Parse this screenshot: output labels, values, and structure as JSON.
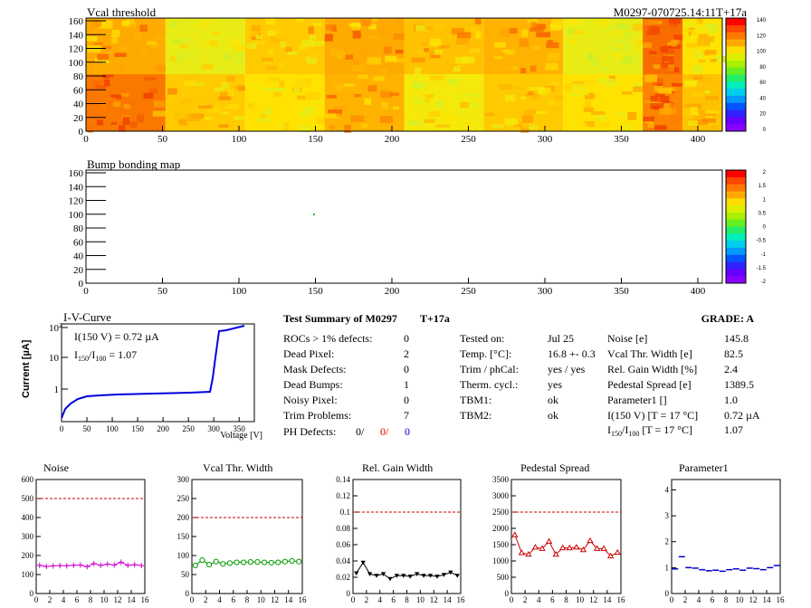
{
  "header": {
    "vcal_title": "Vcal threshold",
    "module_id": "M0297-070725.14:11T+17a",
    "bump_title": "Bump bonding map"
  },
  "maps": {
    "x_ticks": [
      "0",
      "50",
      "100",
      "150",
      "200",
      "250",
      "300",
      "350",
      "400"
    ],
    "y_ticks": [
      "0",
      "20",
      "40",
      "60",
      "80",
      "100",
      "120",
      "140",
      "160"
    ],
    "vcal_scale": [
      "0",
      "20",
      "40",
      "60",
      "80",
      "100",
      "120",
      "140"
    ],
    "bump_scale": [
      "-2",
      "-1.5",
      "-1",
      "-0.5",
      "0",
      "0.5",
      "1",
      "1.5",
      "2"
    ],
    "vcal_roc_levels": {
      "top": [
        0.8,
        0.55,
        0.72,
        0.8,
        0.74,
        0.78,
        0.55,
        0.92,
        0.66
      ],
      "bottom": [
        0.9,
        0.72,
        0.66,
        0.78,
        0.6,
        0.72,
        0.66,
        0.88,
        0.74
      ]
    }
  },
  "iv": {
    "title": "I-V-Curve",
    "ylabel": "Current [µA]",
    "xlabel": "Voltage [V]",
    "ann1": "I(150 V) = 0.72 µA",
    "ann2_pre": "I",
    "ann2_sub1": "150",
    "ann2_mid": "/I",
    "ann2_sub2": "100",
    "ann2_val": " =  1.07",
    "x_ticks": [
      "0",
      "50",
      "100",
      "150",
      "200",
      "250",
      "300",
      "350"
    ],
    "y_ticks": [
      "1",
      "10",
      "10"
    ],
    "y_exp": "2"
  },
  "summary": {
    "title": "Test Summary of M0297",
    "tag": "T+17a",
    "grade": "GRADE:  A",
    "col1": [
      {
        "label": "ROCs > 1% defects:",
        "value": "0"
      },
      {
        "label": "Dead Pixel:",
        "value": "2"
      },
      {
        "label": "Mask Defects:",
        "value": "0"
      },
      {
        "label": "Dead Bumps:",
        "value": "1"
      },
      {
        "label": "Noisy Pixel:",
        "value": "0"
      },
      {
        "label": "Trim Problems:",
        "value": "7"
      }
    ],
    "ph_label": "PH Defects:",
    "ph_v1": "0/",
    "ph_v2": "0/",
    "ph_v3": "0",
    "col2": [
      {
        "label": "Tested on:",
        "value": "Jul 25"
      },
      {
        "label": "Temp. [°C]:",
        "value": "16.8 +- 0.3"
      },
      {
        "label": "Trim / phCal:",
        "value": "yes / yes"
      },
      {
        "label": "Therm. cycl.:",
        "value": "yes"
      },
      {
        "label": "TBM1:",
        "value": "ok"
      },
      {
        "label": "TBM2:",
        "value": "ok"
      }
    ],
    "col3": [
      {
        "label": "Noise [e]",
        "value": "145.8"
      },
      {
        "label": "Vcal Thr. Width [e]",
        "value": "82.5"
      },
      {
        "label": "Rel. Gain Width [%]",
        "value": "2.4"
      },
      {
        "label": "Pedestal Spread [e]",
        "value": "1389.5"
      },
      {
        "label": "Parameter1 []",
        "value": "1.0"
      },
      {
        "label": "I(150 V) [T = 17 °C]",
        "value": "0.72 µA"
      }
    ],
    "ratio_pre": "I",
    "ratio_sub1": "150",
    "ratio_mid": "/I",
    "ratio_sub2": "100",
    "ratio_tail": "  [T = 17 °C]",
    "ratio_value": "1.07"
  },
  "chart_data": [
    {
      "type": "line",
      "title": "Noise",
      "x_ticks": [
        "0",
        "2",
        "4",
        "6",
        "8",
        "10",
        "12",
        "14",
        "16"
      ],
      "ylim": [
        0,
        600
      ],
      "y_ticks": [
        "0",
        "100",
        "200",
        "300",
        "400",
        "500",
        "600"
      ],
      "threshold": 500,
      "color": "#cc00cc",
      "marker": "plus",
      "values": [
        148,
        142,
        145,
        147,
        146,
        149,
        150,
        141,
        158,
        148,
        155,
        150,
        165,
        148,
        152,
        147
      ]
    },
    {
      "type": "line",
      "title": "Vcal Thr. Width",
      "x_ticks": [
        "0",
        "2",
        "4",
        "6",
        "8",
        "10",
        "12",
        "14",
        "16"
      ],
      "ylim": [
        0,
        300
      ],
      "y_ticks": [
        "0",
        "50",
        "100",
        "150",
        "200",
        "250",
        "300"
      ],
      "threshold": 200,
      "color": "#009900",
      "marker": "circle",
      "values": [
        74,
        88,
        76,
        84,
        78,
        80,
        82,
        82,
        83,
        83,
        82,
        81,
        82,
        84,
        86,
        84
      ]
    },
    {
      "type": "line",
      "title": "Rel. Gain Width",
      "x_ticks": [
        "0",
        "2",
        "4",
        "6",
        "8",
        "10",
        "12",
        "14",
        "16"
      ],
      "ylim": [
        0,
        0.14
      ],
      "y_ticks": [
        "0",
        "0.02",
        "0.04",
        "0.06",
        "0.08",
        "0.1",
        "0.12",
        "0.14"
      ],
      "threshold": 0.1,
      "color": "#000000",
      "marker": "triangle-down",
      "values": [
        0.025,
        0.038,
        0.024,
        0.022,
        0.024,
        0.018,
        0.022,
        0.022,
        0.021,
        0.024,
        0.022,
        0.022,
        0.021,
        0.023,
        0.026,
        0.022
      ]
    },
    {
      "type": "line",
      "title": "Pedestal Spread",
      "x_ticks": [
        "0",
        "2",
        "4",
        "6",
        "8",
        "10",
        "12",
        "14",
        "16"
      ],
      "ylim": [
        0,
        3500
      ],
      "y_ticks": [
        "0",
        "500",
        "1000",
        "1500",
        "2000",
        "2500",
        "3000",
        "3500"
      ],
      "threshold": 2500,
      "color": "#cc0000",
      "marker": "triangle-up",
      "values": [
        1800,
        1250,
        1200,
        1420,
        1380,
        1600,
        1200,
        1400,
        1400,
        1420,
        1340,
        1620,
        1380,
        1380,
        1150,
        1260
      ]
    },
    {
      "type": "line",
      "title": "Parameter1",
      "x_ticks": [
        "0",
        "2",
        "4",
        "6",
        "8",
        "10",
        "12",
        "14",
        "16"
      ],
      "ylim": [
        0,
        4.4
      ],
      "y_ticks": [
        "0",
        "1",
        "2",
        "3",
        "4"
      ],
      "threshold": null,
      "color": "#0000cc",
      "marker": "hbar",
      "values": [
        0.95,
        1.42,
        1.0,
        0.98,
        0.92,
        0.88,
        0.9,
        0.86,
        0.92,
        0.95,
        0.9,
        0.98,
        0.96,
        0.92,
        1.0,
        1.08
      ]
    }
  ]
}
